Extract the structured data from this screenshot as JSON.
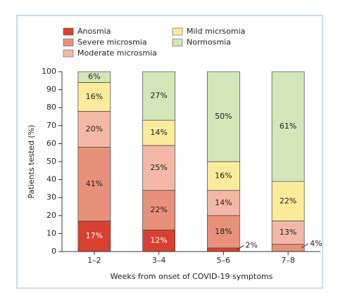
{
  "chart_data": {
    "type": "stacked_bar",
    "x_label": "Weeks from onset of COVID-19 symptoms",
    "y_label": "Patients tested (%)",
    "categories": [
      "1–2",
      "3–4",
      "5–6",
      "7–8"
    ],
    "series": [
      {
        "name": "Anosmia",
        "color": "#d9402f",
        "values": [
          17,
          12,
          2,
          0
        ],
        "value_labels": [
          "17%",
          "12%",
          "2%",
          null
        ]
      },
      {
        "name": "Severe microsmia",
        "color": "#e8917a",
        "values": [
          41,
          22,
          18,
          4
        ],
        "value_labels": [
          "41%",
          "22%",
          "18%",
          "4%"
        ]
      },
      {
        "name": "Moderate microsmia",
        "color": "#f3b8a6",
        "values": [
          20,
          25,
          14,
          13
        ],
        "value_labels": [
          "20%",
          "25%",
          "14%",
          "13%"
        ]
      },
      {
        "name": "Mild micrsomia",
        "color": "#fdeb9c",
        "values": [
          16,
          14,
          16,
          22
        ],
        "value_labels": [
          "16%",
          "14%",
          "16%",
          "22%"
        ]
      },
      {
        "name": "Normosmia",
        "color": "#d2e6b8",
        "values": [
          6,
          27,
          50,
          61
        ],
        "value_labels": [
          "6%",
          "27%",
          "50%",
          "61%"
        ]
      }
    ],
    "ylim": [
      0,
      100
    ],
    "yticks": [
      0,
      10,
      20,
      30,
      40,
      50,
      60,
      70,
      80,
      90,
      100
    ]
  }
}
